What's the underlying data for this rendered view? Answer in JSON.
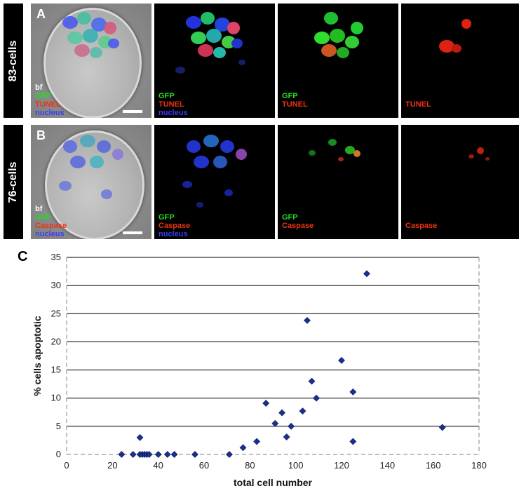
{
  "figure": {
    "row_a": {
      "side_label": "83-cells",
      "panel_letter": "A",
      "legend_bf": [
        "bf",
        "GFP",
        "TUNEL",
        "nucleus"
      ],
      "legend_merge": [
        "GFP",
        "TUNEL",
        "nucleus"
      ],
      "legend_gfp": [
        "GFP",
        "TUNEL"
      ],
      "legend_red": [
        "TUNEL"
      ]
    },
    "row_b": {
      "side_label": "76-cells",
      "panel_letter": "B",
      "legend_bf": [
        "bf",
        "GFP",
        "Caspase",
        "nucleus"
      ],
      "legend_merge": [
        "GFP",
        "Caspase",
        "nucleus"
      ],
      "legend_gfp": [
        "GFP",
        "Caspase"
      ],
      "legend_red": [
        "Caspase"
      ]
    },
    "panel_c_letter": "C",
    "colors": {
      "gfp": "#22dd22",
      "red": "#ee3311",
      "nucleus": "#3b3bff",
      "marker": "#1a2f8f"
    }
  },
  "chart_data": {
    "type": "scatter",
    "title": "",
    "xlabel": "total cell number",
    "ylabel": "% cells apoptotic",
    "xlim": [
      0,
      180
    ],
    "ylim": [
      0,
      35
    ],
    "xticks": [
      0,
      20,
      40,
      60,
      80,
      100,
      120,
      140,
      160,
      180
    ],
    "yticks": [
      0,
      5,
      10,
      15,
      20,
      25,
      30,
      35
    ],
    "grid": "horizontal",
    "legend": "none",
    "series": [
      {
        "points": [
          [
            24,
            0
          ],
          [
            29,
            0
          ],
          [
            32,
            3
          ],
          [
            32,
            0
          ],
          [
            33,
            0
          ],
          [
            34,
            0
          ],
          [
            35,
            0
          ],
          [
            36,
            0
          ],
          [
            40,
            0
          ],
          [
            44,
            0
          ],
          [
            47,
            0
          ],
          [
            56,
            0
          ],
          [
            71,
            0
          ],
          [
            77,
            1.2
          ],
          [
            83,
            2.3
          ],
          [
            87,
            9.1
          ],
          [
            91,
            5.5
          ],
          [
            94,
            7.4
          ],
          [
            96,
            3.1
          ],
          [
            98,
            5.0
          ],
          [
            103,
            7.7
          ],
          [
            105,
            23.8
          ],
          [
            107,
            13.0
          ],
          [
            109,
            10.0
          ],
          [
            120,
            16.7
          ],
          [
            125,
            11.1
          ],
          [
            125,
            2.3
          ],
          [
            131,
            32.1
          ],
          [
            164,
            4.8
          ]
        ]
      }
    ]
  }
}
